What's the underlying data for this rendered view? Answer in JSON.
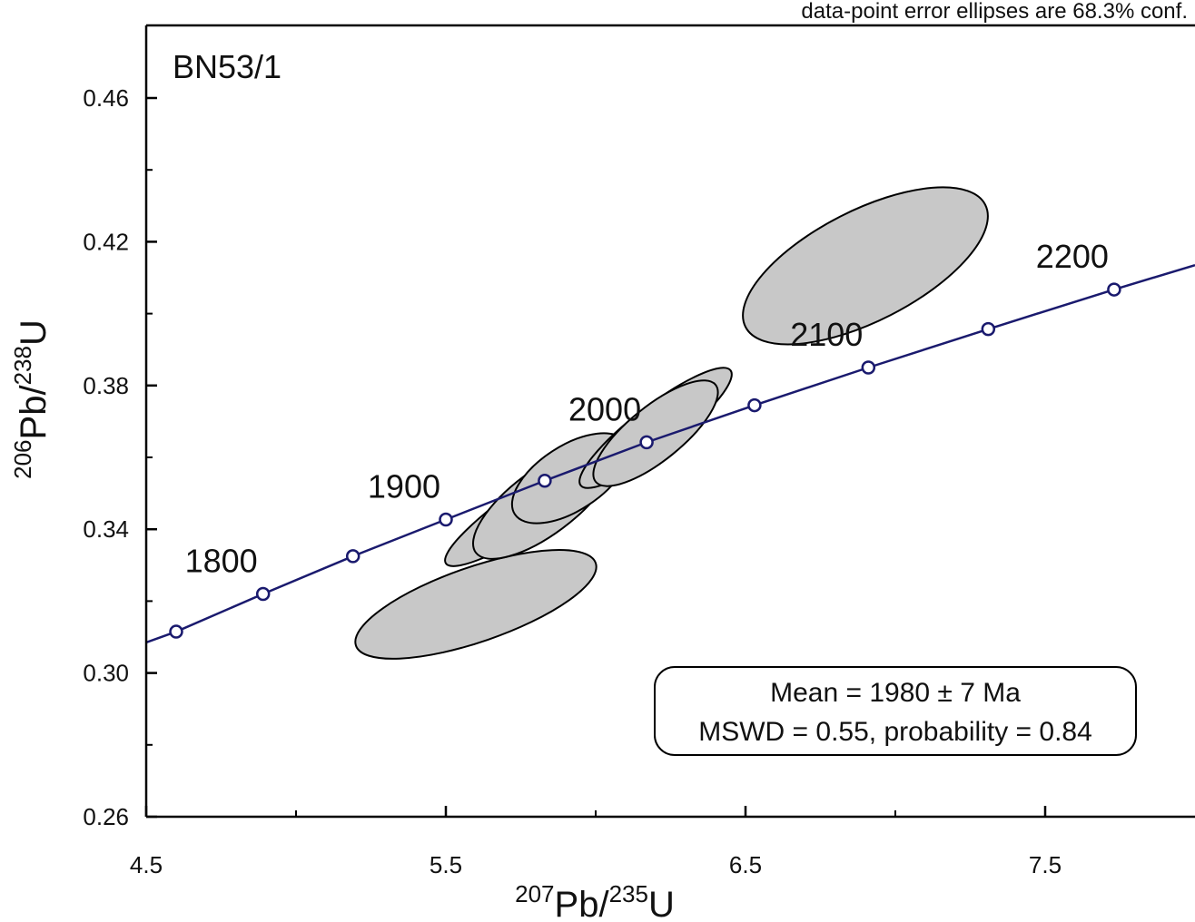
{
  "chart_data": {
    "type": "scatter",
    "subtype": "concordia",
    "note": "data-point error ellipses are 68.3% conf.",
    "sample_label": "BN53/1",
    "x_axis": {
      "label_parts": [
        {
          "sup": "207"
        },
        {
          "text": "Pb/"
        },
        {
          "sup": "235"
        },
        {
          "text": "U"
        }
      ],
      "xlim": [
        4.5,
        8.0
      ],
      "ticks": [
        4.5,
        5.5,
        6.5,
        7.5
      ],
      "tick_labels": [
        "4.5",
        "5.5",
        "6.5",
        "7.5"
      ],
      "minor_ticks": [
        5.0,
        6.0,
        7.0
      ]
    },
    "y_axis": {
      "label_parts": [
        {
          "sup": "206"
        },
        {
          "text": "Pb/"
        },
        {
          "sup": "238"
        },
        {
          "text": "U"
        }
      ],
      "ylim": [
        0.26,
        0.48
      ],
      "ticks": [
        0.26,
        0.3,
        0.34,
        0.38,
        0.42,
        0.46
      ],
      "tick_labels": [
        "0.26",
        "0.30",
        "0.34",
        "0.38",
        "0.42",
        "0.46"
      ],
      "minor_ticks": [
        0.28,
        0.32,
        0.36,
        0.4,
        0.44
      ]
    },
    "concordia_curve": {
      "color": "#1a1a6e",
      "points": [
        {
          "x": 4.35,
          "y": 0.304
        },
        {
          "x": 4.6,
          "y": 0.3115
        },
        {
          "x": 4.89,
          "y": 0.322
        },
        {
          "x": 5.19,
          "y": 0.3325
        },
        {
          "x": 5.5,
          "y": 0.3427
        },
        {
          "x": 5.83,
          "y": 0.3535
        },
        {
          "x": 6.17,
          "y": 0.3642
        },
        {
          "x": 6.53,
          "y": 0.3745
        },
        {
          "x": 6.91,
          "y": 0.385
        },
        {
          "x": 7.31,
          "y": 0.3957
        },
        {
          "x": 7.73,
          "y": 0.4067
        },
        {
          "x": 8.0,
          "y": 0.4135
        }
      ],
      "age_markers": [
        {
          "x": 4.6,
          "y": 0.3115
        },
        {
          "x": 4.89,
          "y": 0.322
        },
        {
          "x": 5.19,
          "y": 0.3325
        },
        {
          "x": 5.5,
          "y": 0.3427
        },
        {
          "x": 5.83,
          "y": 0.3535
        },
        {
          "x": 6.17,
          "y": 0.3642
        },
        {
          "x": 6.53,
          "y": 0.3745
        },
        {
          "x": 6.91,
          "y": 0.385
        },
        {
          "x": 7.31,
          "y": 0.3957
        },
        {
          "x": 7.73,
          "y": 0.4067
        }
      ],
      "age_labels": [
        {
          "text": "1800",
          "x": 4.89,
          "y": 0.322
        },
        {
          "text": "1900",
          "x": 5.5,
          "y": 0.3427
        },
        {
          "text": "2000",
          "x": 6.17,
          "y": 0.3642
        },
        {
          "text": "2100",
          "x": 6.91,
          "y": 0.385
        },
        {
          "text": "2200",
          "x": 7.73,
          "y": 0.4067
        }
      ]
    },
    "error_ellipses": {
      "fill": "#c8c8c8",
      "stroke": "#000000",
      "items": [
        {
          "x1": 5.2,
          "y1": 0.3076,
          "x2": 6.0,
          "y2": 0.3306,
          "minor": 0.0208
        },
        {
          "x1": 5.5,
          "y1": 0.3305,
          "x2": 6.15,
          "y2": 0.3665,
          "minor": 0.0127
        },
        {
          "x1": 5.6,
          "y1": 0.3335,
          "x2": 6.05,
          "y2": 0.3615,
          "minor": 0.018
        },
        {
          "x1": 5.73,
          "y1": 0.3442,
          "x2": 6.1,
          "y2": 0.3642,
          "minor": 0.018
        },
        {
          "x1": 5.95,
          "y1": 0.3522,
          "x2": 6.45,
          "y2": 0.3842,
          "minor": 0.0123
        },
        {
          "x1": 6.0,
          "y1": 0.3532,
          "x2": 6.4,
          "y2": 0.3802,
          "minor": 0.015
        },
        {
          "x1": 6.5,
          "y1": 0.3963,
          "x2": 7.3,
          "y2": 0.4303,
          "minor": 0.0308
        }
      ]
    },
    "result_box": {
      "line1": "Mean = 1980 ± 7 Ma",
      "line2": "MSWD = 0.55, probability = 0.84"
    }
  }
}
